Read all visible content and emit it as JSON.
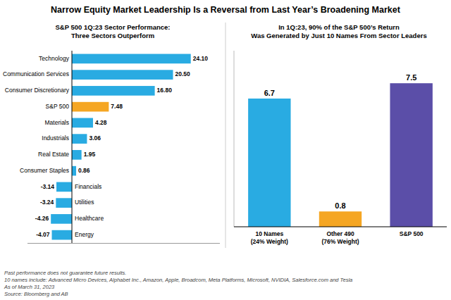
{
  "chart_data": [
    {
      "type": "bar",
      "orientation": "horizontal",
      "title": "Narrow Equity Market Leadership Is a Reversal from Last Year’s Broadening Market",
      "subtitle": "S&P 500 1Q:23 Sector Performance:\nThree Sectors Outperform",
      "categories": [
        "Technology",
        "Communication Services",
        "Consumer Discretionary",
        "S&P 500",
        "Materials",
        "Industrials",
        "Real Estate",
        "Consumer Staples",
        "Financials",
        "Utilities",
        "Healthcare",
        "Energy"
      ],
      "values": [
        24.1,
        20.5,
        16.8,
        7.48,
        4.28,
        3.06,
        1.95,
        0.86,
        -3.14,
        -3.24,
        -4.26,
        -4.07
      ],
      "value_labels": [
        "24.10",
        "20.50",
        "16.80",
        "7.48",
        "4.28",
        "3.06",
        "1.95",
        "0.86",
        "-3.14",
        "-3.24",
        "-4.26",
        "-4.07"
      ],
      "colors": [
        "#29ABE2",
        "#29ABE2",
        "#29ABE2",
        "#F5A623",
        "#29ABE2",
        "#29ABE2",
        "#29ABE2",
        "#29ABE2",
        "#29ABE2",
        "#29ABE2",
        "#29ABE2",
        "#29ABE2"
      ],
      "xlim": [
        -9,
        30
      ],
      "data_labels": true,
      "tick_labels": "y",
      "annotations": [
        "Past performance does not guarantee future results.",
        "10 names include: Advanced Micro Devices, Alphabet Inc., Amazon, Apple, Broadcom, Meta Platforms, Microsoft, NVIDIA, Salesforce.com and Tesla",
        "As of March 31, 2023",
        "Source: Bloomberg and AB"
      ]
    },
    {
      "type": "bar",
      "subtitle": "In 1Q:23, 90% of the S&P 500’s Return\nWas Generated by Just 10 Names From Sector Leaders",
      "categories": [
        "10 Names\n(24% Weight)",
        "Other 490\n(76% Weight)",
        "S&P 500"
      ],
      "values": [
        6.7,
        0.8,
        7.5
      ],
      "colors": [
        "#29ABE2",
        "#F5A623",
        "#5B4EA8"
      ],
      "ylim": [
        0,
        9.2
      ],
      "data_labels": true,
      "tick_labels": "x"
    }
  ]
}
